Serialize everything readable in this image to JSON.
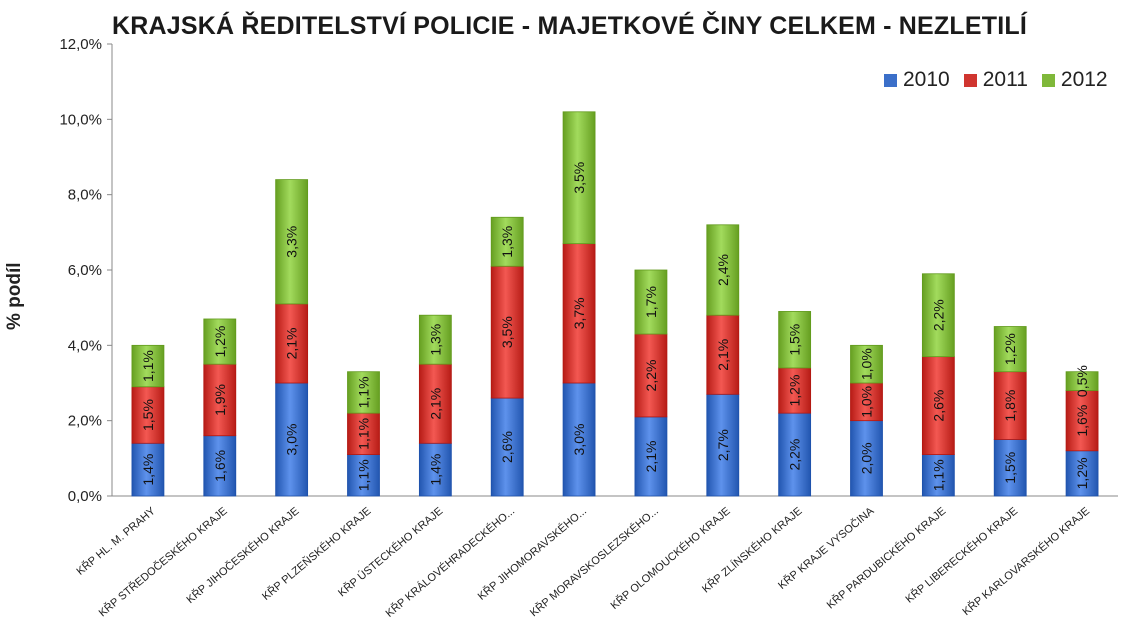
{
  "chart_data": {
    "type": "bar",
    "stacked": true,
    "title": "KRAJSKÁ ŘEDITELSTVÍ POLICIE - MAJETKOVÉ ČINY CELKEM - NEZLETILÍ",
    "xlabel": "",
    "ylabel": "% podíl",
    "ylim": [
      0,
      12
    ],
    "y_ticks": [
      "0,0%",
      "2,0%",
      "4,0%",
      "6,0%",
      "8,0%",
      "10,0%",
      "12,0%"
    ],
    "legend_position": "top-right",
    "categories": [
      "KŘP HL. M. PRAHY",
      "KŘP STŘEDOČESKÉHO KRAJE",
      "KŘP JIHOČESKÉHO KRAJE",
      "KŘP PLZEŇSKÉHO KRAJE",
      "KŘP ÚSTECKÉHO KRAJE",
      "KŘP KRÁLOVÉHRADECKÉHO...",
      "KŘP JIHOMORAVSKÉHO...",
      "KŘP MORAVSKOSLEZSKÉHO...",
      "KŘP OLOMOUCKÉHO KRAJE",
      "KŘP ZLÍNSKÉHO KRAJE",
      "KŘP KRAJE VYSOČINA",
      "KŘP PARDUBICKÉHO KRAJE",
      "KŘP LIBERECKÉHO KRAJE",
      "KŘP KARLOVARSKÉHO KRAJE"
    ],
    "series": [
      {
        "name": "2010",
        "color": "#3b6fc9",
        "values": [
          1.4,
          1.6,
          3.0,
          1.1,
          1.4,
          2.6,
          3.0,
          2.1,
          2.7,
          2.2,
          2.0,
          1.1,
          1.5,
          1.2
        ],
        "labels": [
          "1,4%",
          "1,6%",
          "3,0%",
          "1,1%",
          "1,4%",
          "2,6%",
          "3,0%",
          "2,1%",
          "2,7%",
          "2,2%",
          "2,0%",
          "1,1%",
          "1,5%",
          "1,2%"
        ]
      },
      {
        "name": "2011",
        "color": "#d0352f",
        "values": [
          1.5,
          1.9,
          2.1,
          1.1,
          2.1,
          3.5,
          3.7,
          2.2,
          2.1,
          1.2,
          1.0,
          2.6,
          1.8,
          1.6
        ],
        "labels": [
          "1,5%",
          "1,9%",
          "2,1%",
          "1,1%",
          "2,1%",
          "3,5%",
          "3,7%",
          "2,2%",
          "2,1%",
          "1,2%",
          "1,0%",
          "2,6%",
          "1,8%",
          "1,6%"
        ]
      },
      {
        "name": "2012",
        "color": "#7fb83a",
        "values": [
          1.1,
          1.2,
          3.3,
          1.1,
          1.3,
          1.3,
          3.5,
          1.7,
          2.4,
          1.5,
          1.0,
          2.2,
          1.2,
          0.5
        ],
        "labels": [
          "1,1%",
          "1,2%",
          "3,3%",
          "1,1%",
          "1,3%",
          "1,3%",
          "3,5%",
          "1,7%",
          "2,4%",
          "1,5%",
          "1,0%",
          "2,2%",
          "1,2%",
          "0,5%"
        ]
      }
    ]
  }
}
